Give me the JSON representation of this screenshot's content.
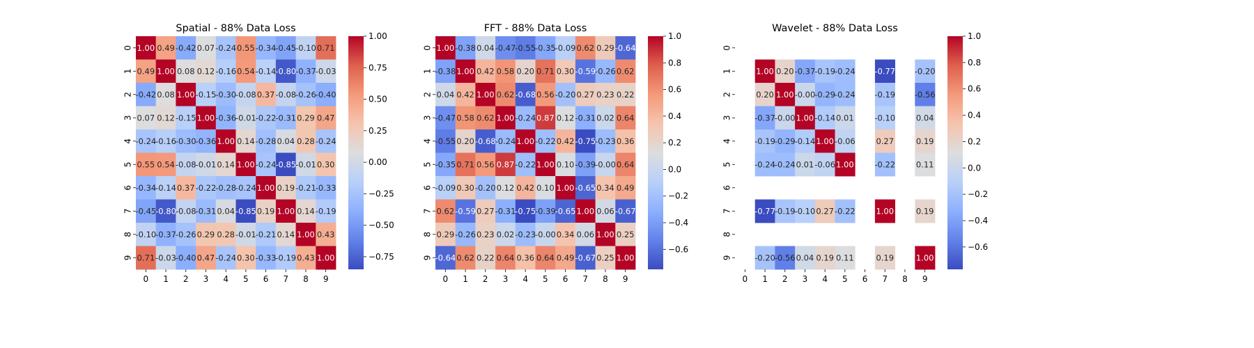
{
  "chart_data": [
    {
      "type": "heatmap",
      "title": "Spatial - 88% Data Loss",
      "xlabel": "",
      "ylabel": "",
      "x_categories": [
        "0",
        "1",
        "2",
        "3",
        "4",
        "5",
        "6",
        "7",
        "8",
        "9"
      ],
      "y_categories": [
        "0",
        "1",
        "2",
        "3",
        "4",
        "5",
        "6",
        "7",
        "8",
        "9"
      ],
      "colormap": "coolwarm",
      "color_range": [
        -0.85,
        1.0
      ],
      "colorbar_ticks": [
        -0.75,
        -0.5,
        -0.25,
        0.0,
        0.25,
        0.5,
        0.75,
        1.0
      ],
      "colorbar_tick_labels": [
        "−0.75",
        "−0.50",
        "−0.25",
        "0.00",
        "0.25",
        "0.50",
        "0.75",
        "1.00"
      ],
      "values": [
        [
          1.0,
          0.49,
          -0.42,
          0.07,
          -0.24,
          0.55,
          -0.34,
          -0.45,
          -0.1,
          0.71
        ],
        [
          0.49,
          1.0,
          0.08,
          0.12,
          -0.16,
          0.54,
          -0.14,
          -0.8,
          -0.37,
          -0.03
        ],
        [
          -0.42,
          0.08,
          1.0,
          -0.15,
          -0.3,
          -0.08,
          0.37,
          -0.08,
          -0.26,
          -0.4
        ],
        [
          0.07,
          0.12,
          -0.15,
          1.0,
          -0.36,
          -0.01,
          -0.22,
          -0.31,
          0.29,
          0.47
        ],
        [
          -0.24,
          -0.16,
          -0.3,
          -0.36,
          1.0,
          0.14,
          -0.28,
          0.04,
          0.28,
          -0.24
        ],
        [
          0.55,
          0.54,
          -0.08,
          -0.01,
          0.14,
          1.0,
          -0.24,
          -0.85,
          -0.01,
          0.3
        ],
        [
          -0.34,
          -0.14,
          0.37,
          -0.22,
          -0.28,
          -0.24,
          1.0,
          0.19,
          -0.21,
          -0.33
        ],
        [
          -0.45,
          -0.8,
          -0.08,
          -0.31,
          0.04,
          -0.85,
          0.19,
          1.0,
          0.14,
          -0.19
        ],
        [
          -0.1,
          -0.37,
          -0.26,
          0.29,
          0.28,
          -0.01,
          -0.21,
          0.14,
          1.0,
          0.43
        ],
        [
          0.71,
          -0.03,
          -0.4,
          0.47,
          -0.24,
          0.3,
          -0.33,
          -0.19,
          0.43,
          1.0
        ]
      ]
    },
    {
      "type": "heatmap",
      "title": "FFT - 88% Data Loss",
      "xlabel": "",
      "ylabel": "",
      "x_categories": [
        "0",
        "1",
        "2",
        "3",
        "4",
        "5",
        "6",
        "7",
        "8",
        "9"
      ],
      "y_categories": [
        "0",
        "1",
        "2",
        "3",
        "4",
        "5",
        "6",
        "7",
        "8",
        "9"
      ],
      "colormap": "coolwarm",
      "color_range": [
        -0.75,
        1.0
      ],
      "colorbar_ticks": [
        -0.6,
        -0.4,
        -0.2,
        0.0,
        0.2,
        0.4,
        0.6,
        0.8,
        1.0
      ],
      "colorbar_tick_labels": [
        "−0.6",
        "−0.4",
        "−0.2",
        "0.0",
        "0.2",
        "0.4",
        "0.6",
        "0.8",
        "1.0"
      ],
      "values": [
        [
          1.0,
          -0.38,
          0.04,
          -0.47,
          -0.55,
          -0.35,
          -0.09,
          0.62,
          0.29,
          -0.64
        ],
        [
          -0.38,
          1.0,
          0.42,
          0.58,
          0.2,
          0.71,
          0.3,
          -0.59,
          -0.26,
          0.62
        ],
        [
          0.04,
          0.42,
          1.0,
          0.62,
          -0.68,
          0.56,
          -0.2,
          0.27,
          0.23,
          0.22
        ],
        [
          -0.47,
          0.58,
          0.62,
          1.0,
          -0.24,
          0.87,
          0.12,
          -0.31,
          0.02,
          0.64
        ],
        [
          -0.55,
          0.2,
          -0.68,
          -0.24,
          1.0,
          -0.22,
          0.42,
          -0.75,
          -0.23,
          0.36
        ],
        [
          -0.35,
          0.71,
          0.56,
          0.87,
          -0.22,
          1.0,
          0.1,
          -0.39,
          -0.0,
          0.64
        ],
        [
          -0.09,
          0.3,
          -0.2,
          0.12,
          0.42,
          0.1,
          1.0,
          -0.65,
          0.34,
          0.49
        ],
        [
          0.62,
          -0.59,
          0.27,
          -0.31,
          -0.75,
          -0.39,
          -0.65,
          1.0,
          0.06,
          -0.67
        ],
        [
          0.29,
          -0.26,
          0.23,
          0.02,
          -0.23,
          -0.0,
          0.34,
          0.06,
          1.0,
          0.25
        ],
        [
          -0.64,
          0.62,
          0.22,
          0.64,
          0.36,
          0.64,
          0.49,
          -0.67,
          0.25,
          1.0
        ]
      ]
    },
    {
      "type": "heatmap",
      "title": "Wavelet - 88% Data Loss",
      "xlabel": "",
      "ylabel": "",
      "x_categories": [
        "0",
        "1",
        "2",
        "3",
        "4",
        "5",
        "6",
        "7",
        "8",
        "9"
      ],
      "y_categories": [
        "0",
        "1",
        "2",
        "3",
        "4",
        "5",
        "6",
        "7",
        "8",
        "9"
      ],
      "colormap": "coolwarm",
      "color_range": [
        -0.77,
        1.0
      ],
      "colorbar_ticks": [
        -0.6,
        -0.4,
        -0.2,
        0.0,
        0.2,
        0.4,
        0.6,
        0.8,
        1.0
      ],
      "colorbar_tick_labels": [
        "−0.6",
        "−0.4",
        "−0.2",
        "0.0",
        "0.2",
        "0.4",
        "0.6",
        "0.8",
        "1.0"
      ],
      "values": [
        [
          null,
          null,
          null,
          null,
          null,
          null,
          null,
          null,
          null,
          null
        ],
        [
          null,
          1.0,
          0.2,
          -0.37,
          -0.19,
          -0.24,
          null,
          -0.77,
          null,
          -0.2
        ],
        [
          null,
          0.2,
          1.0,
          -0.0,
          -0.29,
          -0.24,
          null,
          -0.19,
          null,
          -0.56
        ],
        [
          null,
          -0.37,
          -0.0,
          1.0,
          -0.14,
          0.01,
          null,
          -0.1,
          null,
          0.04
        ],
        [
          null,
          -0.19,
          -0.29,
          -0.14,
          1.0,
          -0.06,
          null,
          0.27,
          null,
          0.19
        ],
        [
          null,
          -0.24,
          -0.24,
          0.01,
          -0.06,
          1.0,
          null,
          -0.22,
          null,
          0.11
        ],
        [
          null,
          null,
          null,
          null,
          null,
          null,
          null,
          null,
          null,
          null
        ],
        [
          null,
          -0.77,
          -0.19,
          -0.1,
          0.27,
          -0.22,
          null,
          1.0,
          null,
          0.19
        ],
        [
          null,
          null,
          null,
          null,
          null,
          null,
          null,
          null,
          null,
          null
        ],
        [
          null,
          -0.2,
          -0.56,
          0.04,
          0.19,
          0.11,
          null,
          0.19,
          null,
          1.0
        ]
      ]
    }
  ]
}
